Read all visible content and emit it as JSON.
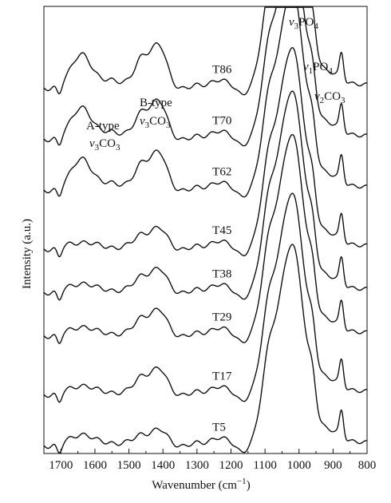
{
  "chart_data": {
    "type": "line",
    "title": "",
    "xlabel": "Wavenumber (cm",
    "xlabel_sup": "−1",
    "xlabel_close": ")",
    "ylabel": "Intensity (a.u.)",
    "x_reversed": true,
    "xlim": [
      1750,
      800
    ],
    "x_ticks": [
      1700,
      1600,
      1500,
      1400,
      1300,
      1200,
      1100,
      1000,
      900,
      800
    ],
    "y_ticks": [],
    "grid": false,
    "legend": "none",
    "annotations": [
      {
        "id": "a-type",
        "line1": "A-type",
        "nu": "ν",
        "sub": "3",
        "mol": "CO",
        "mol_sub": "3"
      },
      {
        "id": "b-type",
        "line1": "B-type",
        "nu": "ν",
        "sub": "3",
        "mol": "CO",
        "mol_sub": "3"
      },
      {
        "id": "v3po4",
        "line1": "",
        "nu": "ν",
        "sub": "3",
        "mol": "PO",
        "mol_sub": "4"
      },
      {
        "id": "v1po4",
        "line1": "",
        "nu": "ν",
        "sub": "1",
        "mol": "PO",
        "mol_sub": "4"
      },
      {
        "id": "v2co3",
        "line1": "",
        "nu": "ν",
        "sub": "2",
        "mol": "CO",
        "mol_sub": "3"
      }
    ],
    "series": [
      {
        "name": "T86",
        "offset": 7.0,
        "a_type": 0.75,
        "b_type": 0.85
      },
      {
        "name": "T70",
        "offset": 6.0,
        "a_type": 0.7,
        "b_type": 0.75
      },
      {
        "name": "T62",
        "offset": 5.0,
        "a_type": 0.7,
        "b_type": 0.75
      },
      {
        "name": "T45",
        "offset": 3.85,
        "a_type": 0.15,
        "b_type": 0.4
      },
      {
        "name": "T38",
        "offset": 3.0,
        "a_type": 0.2,
        "b_type": 0.45
      },
      {
        "name": "T29",
        "offset": 2.15,
        "a_type": 0.2,
        "b_type": 0.5
      },
      {
        "name": "T17",
        "offset": 1.0,
        "a_type": 0.2,
        "b_type": 0.5
      },
      {
        "name": "T5",
        "offset": 0.0,
        "a_type": 0.25,
        "b_type": 0.3
      }
    ]
  }
}
